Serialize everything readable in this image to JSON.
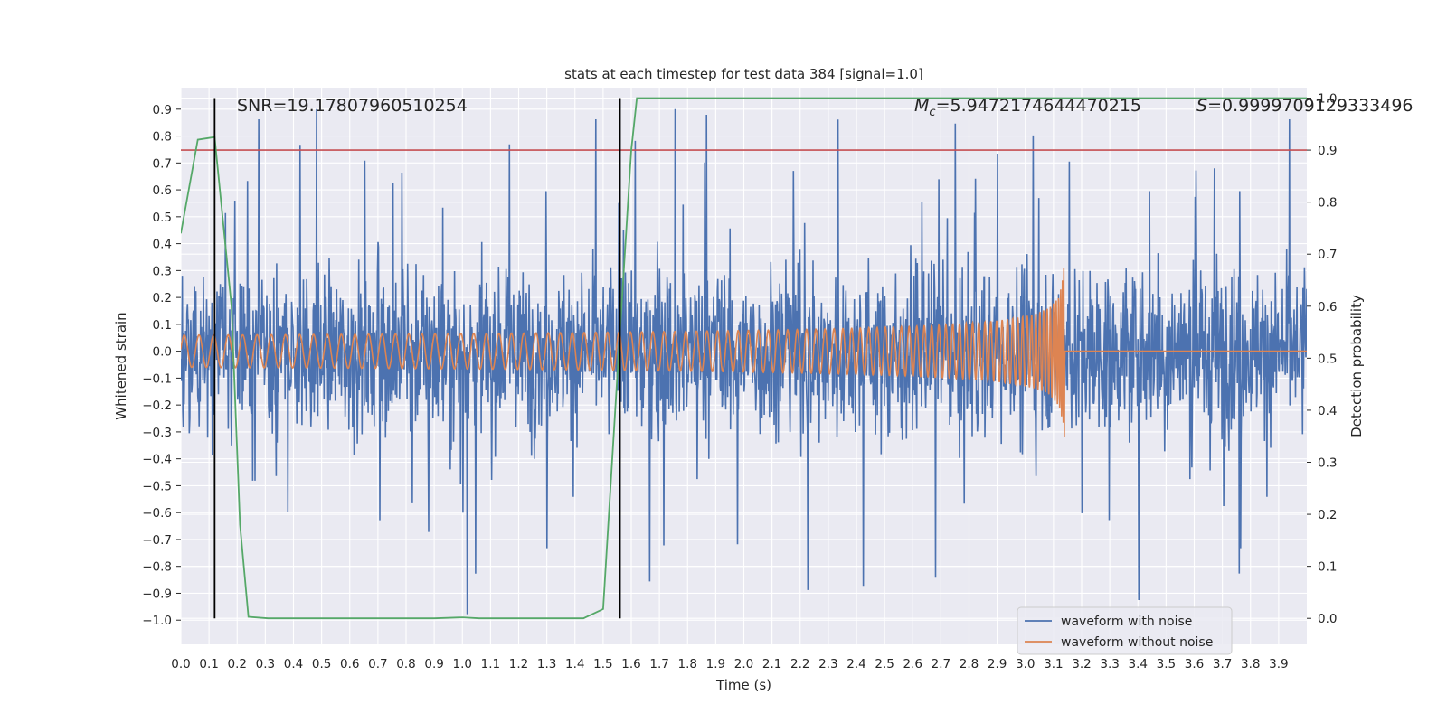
{
  "chart_data": {
    "type": "line",
    "title": "stats at each timestep for test data 384 [signal=1.0]",
    "xlabel": "Time (s)",
    "ylabel_left": "Whitened strain",
    "ylabel_right": "Detection probability",
    "xlim": [
      0.0,
      4.0
    ],
    "ylim_left": [
      -1.09,
      0.98
    ],
    "ylim_right": [
      -0.05,
      1.02
    ],
    "x_ticks": [
      "0.0",
      "0.1",
      "0.2",
      "0.3",
      "0.4",
      "0.5",
      "0.6",
      "0.7",
      "0.8",
      "0.9",
      "1.0",
      "1.1",
      "1.2",
      "1.3",
      "1.4",
      "1.5",
      "1.6",
      "1.7",
      "1.8",
      "1.9",
      "2.0",
      "2.1",
      "2.2",
      "2.3",
      "2.4",
      "2.5",
      "2.6",
      "2.7",
      "2.8",
      "2.9",
      "3.0",
      "3.1",
      "3.2",
      "3.3",
      "3.4",
      "3.5",
      "3.6",
      "3.7",
      "3.8",
      "3.9"
    ],
    "y_left_ticks": [
      "0.9",
      "0.8",
      "0.7",
      "0.6",
      "0.5",
      "0.4",
      "0.3",
      "0.2",
      "0.1",
      "0.0",
      "−0.1",
      "−0.2",
      "−0.3",
      "−0.4",
      "−0.5",
      "−0.6",
      "−0.7",
      "−0.8",
      "−0.9",
      "−1.0"
    ],
    "y_right_ticks": [
      "1.0",
      "0.9",
      "0.8",
      "0.7",
      "0.6",
      "0.5",
      "0.4",
      "0.3",
      "0.2",
      "0.1",
      "0.0"
    ],
    "annotations": {
      "snr": "SNR=19.17807960510254",
      "mc_symbol": "M",
      "mc_subscript": "c",
      "mc_value": "=5.9472174644470215",
      "s_symbol": "S",
      "s_value": "=0.9999709129333496"
    },
    "threshold": {
      "value": 0.9,
      "axis": "right",
      "color": "#c44e52"
    },
    "vertical_markers": [
      0.12,
      1.56
    ],
    "series": [
      {
        "name": "waveform with noise",
        "color": "#4c72b0",
        "axis": "left",
        "description": "random-looking noise, mostly within -0.4..0.4 with spikes up to 0.9 and down to -1.0"
      },
      {
        "name": "waveform without noise",
        "color": "#dd8452",
        "axis": "left",
        "description": "chirp: amplitude ~0.06 at start growing to ~0.4 near 3.14 s, then flat at 0"
      },
      {
        "name": "detection probability",
        "color": "#55a868",
        "axis": "right",
        "x": [
          0.0,
          0.06,
          0.12,
          0.18,
          0.21,
          0.24,
          0.31,
          0.6,
          0.9,
          1.0,
          1.06,
          1.43,
          1.5,
          1.56,
          1.6,
          1.62,
          1.7,
          4.0
        ],
        "y": [
          0.74,
          0.92,
          0.925,
          0.6,
          0.18,
          0.003,
          0.0,
          0.0,
          0.0,
          0.002,
          0.0,
          0.0,
          0.018,
          0.55,
          0.9,
          1.0,
          1.0,
          1.0
        ]
      }
    ],
    "chirp_end": 3.14,
    "legend": {
      "position": "lower-right",
      "entries": [
        "waveform with noise",
        "waveform without noise"
      ]
    }
  }
}
